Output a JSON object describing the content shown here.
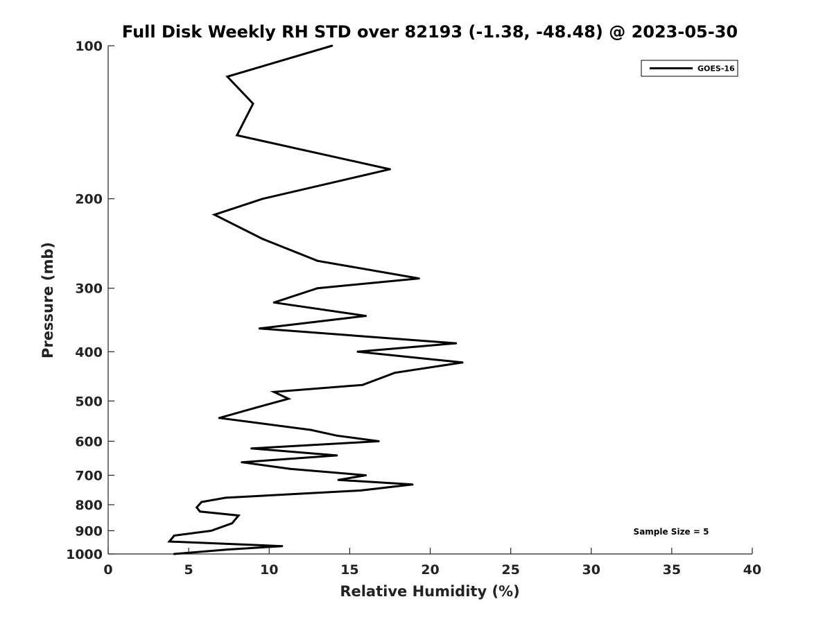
{
  "chart_data": {
    "type": "line",
    "title": "Full Disk Weekly RH STD over 82193 (-1.38, -48.48) @ 2023-05-30",
    "xlabel": "Relative Humidity (%)",
    "ylabel": "Pressure (mb)",
    "xlim": [
      0,
      40
    ],
    "ylim": [
      1000,
      100
    ],
    "yscale": "log",
    "xticks": [
      0,
      5,
      10,
      15,
      20,
      25,
      30,
      35,
      40
    ],
    "yticks": [
      100,
      200,
      300,
      400,
      500,
      600,
      700,
      800,
      900,
      1000
    ],
    "legend": {
      "position": "top-right",
      "entries": [
        "GOES-16"
      ]
    },
    "annotation": "Sample Size = 5",
    "series": [
      {
        "name": "GOES-16",
        "color": "#000000",
        "x": [
          13.9,
          7.4,
          9.0,
          8.0,
          17.5,
          9.6,
          6.6,
          9.6,
          13.0,
          19.3,
          13.0,
          10.3,
          16.0,
          9.4,
          21.6,
          15.5,
          22.0,
          17.8,
          15.8,
          10.3,
          11.2,
          9.2,
          6.9,
          12.6,
          14.2,
          16.8,
          8.9,
          14.2,
          8.3,
          11.3,
          16.0,
          14.3,
          18.9,
          15.7,
          7.3,
          5.8,
          5.5,
          5.7,
          8.1,
          7.7,
          6.4,
          4.1,
          3.8,
          10.8,
          7.4,
          4.1
        ],
        "y": [
          100,
          115,
          130,
          150,
          175,
          200,
          215,
          240,
          265,
          287,
          300,
          320,
          340,
          360,
          385,
          400,
          420,
          440,
          465,
          480,
          495,
          515,
          540,
          570,
          585,
          600,
          620,
          640,
          660,
          680,
          700,
          715,
          730,
          750,
          775,
          790,
          810,
          825,
          840,
          870,
          900,
          920,
          945,
          965,
          980,
          1000
        ]
      }
    ]
  }
}
